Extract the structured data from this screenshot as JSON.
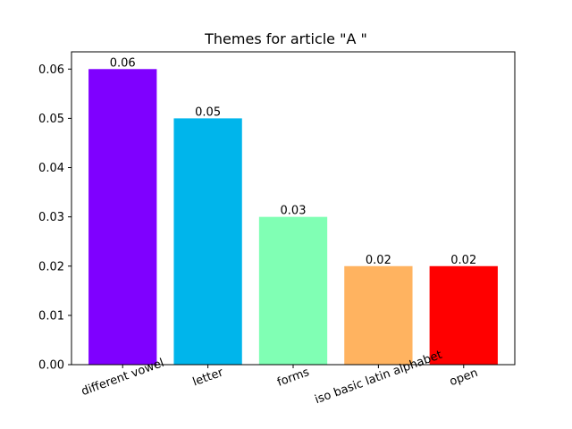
{
  "chart_data": {
    "type": "bar",
    "title": "Themes for article \"A \"",
    "xlabel": "",
    "ylabel": "",
    "categories": [
      "different vowel",
      "letter",
      "forms",
      "iso basic latin alphabet",
      "open"
    ],
    "values": [
      0.06,
      0.05,
      0.03,
      0.02,
      0.02
    ],
    "data_labels": [
      "0.06",
      "0.05",
      "0.03",
      "0.02",
      "0.02"
    ],
    "colors": [
      "#7f00ff",
      "#00b5eb",
      "#80ffb4",
      "#ffb360",
      "#ff0000"
    ],
    "ylim": [
      0,
      0.0635
    ],
    "yticks": [
      0.0,
      0.01,
      0.02,
      0.03,
      0.04,
      0.05,
      0.06
    ],
    "ytick_labels": [
      "0.00",
      "0.01",
      "0.02",
      "0.03",
      "0.04",
      "0.05",
      "0.06"
    ],
    "xtick_rotation_deg": 20,
    "grid": false,
    "legend": "none"
  }
}
